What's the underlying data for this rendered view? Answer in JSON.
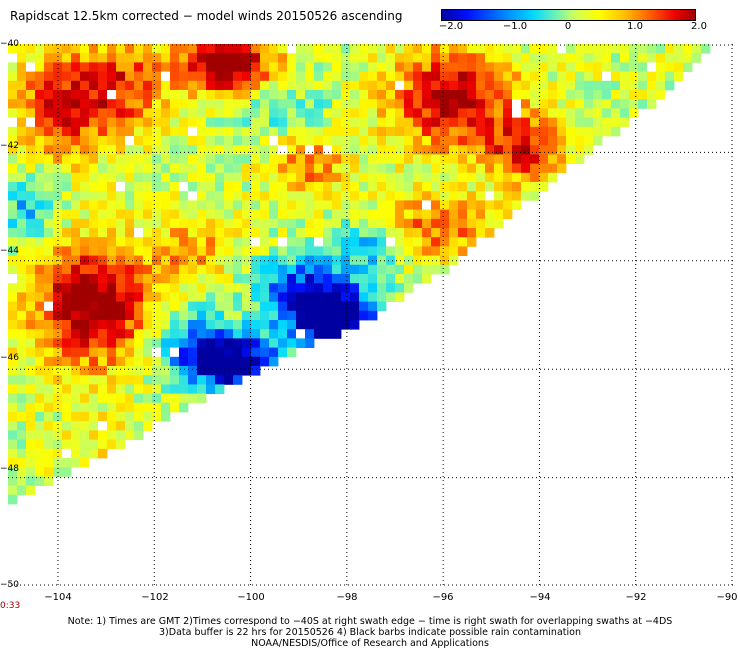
{
  "title": "Rapidscat 12.5km corrected − model winds 20150526 ascending",
  "colorbar": {
    "ticks": [
      "−2.0",
      "−1.0",
      "0",
      "1.0",
      "2.0"
    ],
    "tick_values": [
      -2.0,
      -1.0,
      0,
      1.0,
      2.0
    ],
    "range": [
      -2.0,
      2.0
    ],
    "colors": [
      "#0000a0",
      "#0010ff",
      "#0070ff",
      "#00d8ff",
      "#60f0c0",
      "#c8ff60",
      "#ffff00",
      "#ffc000",
      "#ff6000",
      "#f00000",
      "#a00000"
    ]
  },
  "map": {
    "lon_range": [
      -105,
      -90
    ],
    "lat_range": [
      -50,
      -40
    ],
    "lon_ticks": [
      "−104",
      "−102",
      "−100",
      "−98",
      "−96",
      "−94",
      "−92",
      "−90"
    ],
    "lon_tick_values": [
      -104,
      -102,
      -100,
      -98,
      -96,
      -94,
      -92,
      -90
    ],
    "lat_ticks": [
      "−40",
      "−42",
      "−44",
      "−46",
      "−48",
      "−50"
    ],
    "lat_tick_values": [
      -40,
      -42,
      -44,
      -46,
      -48,
      -50
    ],
    "grid": "dotted",
    "swath_edge_lon_lat": [
      [
        -105,
        -48.5
      ],
      [
        -99.8,
        -46.0
      ],
      [
        -97.8,
        -45.2
      ],
      [
        -96.0,
        -44.2
      ],
      [
        -93.8,
        -42.6
      ],
      [
        -91.5,
        -41.0
      ],
      [
        -90.3,
        -40.0
      ]
    ]
  },
  "timestamp": "0:33",
  "note": {
    "line1": "Note: 1) Times are GMT 2)Times correspond to −40S at right swath edge − time is right swath for overlapping swaths at −4DS",
    "line2": "3)Data buffer is 22 hrs for 20150526 4) Black barbs indicate possible rain contamination",
    "line3": "NOAA/NESDIS/Office of Research and Applications"
  }
}
